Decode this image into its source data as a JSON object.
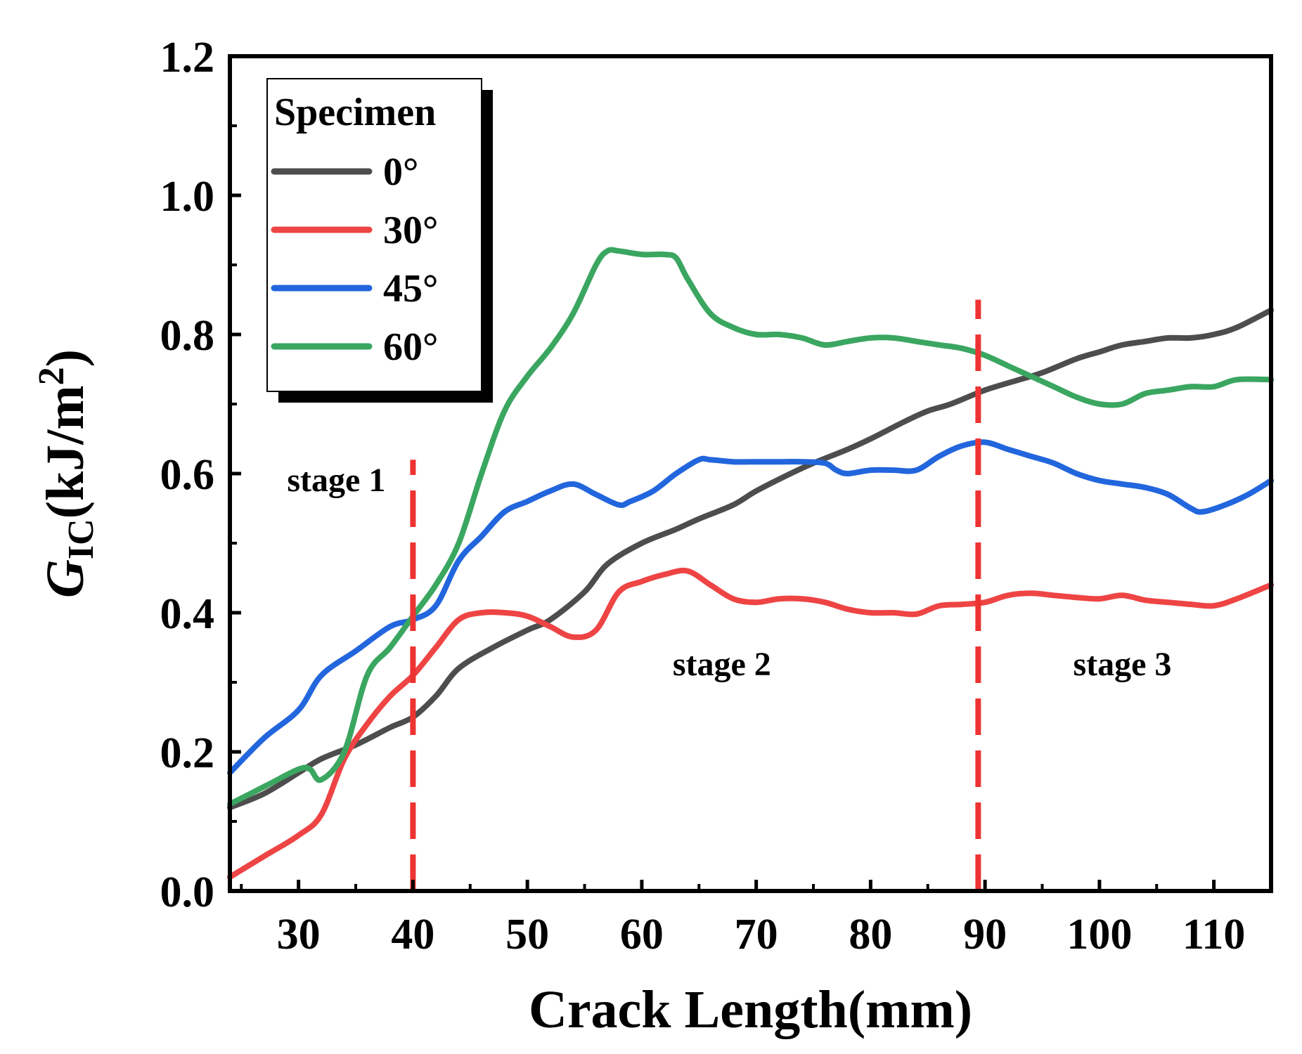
{
  "chart_data": {
    "type": "line",
    "title": "",
    "xlabel": "Crack Length(mm)",
    "ylabel": {
      "symbol": "G",
      "subscript": "IC",
      "unit_open": "(kJ/m",
      "superscript": "2",
      "unit_close": ")"
    },
    "xlim": [
      24,
      115
    ],
    "ylim": [
      0.0,
      1.2
    ],
    "xticks": [
      30,
      40,
      50,
      60,
      70,
      80,
      90,
      100,
      110
    ],
    "yticks": [
      0.0,
      0.2,
      0.4,
      0.6,
      0.8,
      1.0,
      1.2
    ],
    "ytick_labels": [
      "0.0",
      "0.2",
      "0.4",
      "0.6",
      "0.8",
      "1.0",
      "1.2"
    ],
    "legend": {
      "title": "Specimen",
      "position": "top-left"
    },
    "series": [
      {
        "name": "0°",
        "color": "#4d4d4d",
        "x": [
          24,
          27,
          30,
          32,
          35,
          38,
          40,
          42,
          44,
          47,
          50,
          52,
          55,
          57,
          60,
          63,
          65,
          68,
          70,
          73,
          75,
          78,
          80,
          83,
          85,
          87,
          90,
          93,
          95,
          98,
          100,
          102,
          104,
          106,
          108,
          110,
          112,
          115
        ],
        "y": [
          0.12,
          0.14,
          0.17,
          0.19,
          0.21,
          0.235,
          0.25,
          0.28,
          0.32,
          0.35,
          0.375,
          0.39,
          0.43,
          0.47,
          0.5,
          0.52,
          0.535,
          0.555,
          0.575,
          0.6,
          0.615,
          0.635,
          0.65,
          0.675,
          0.69,
          0.7,
          0.72,
          0.735,
          0.745,
          0.765,
          0.775,
          0.785,
          0.79,
          0.795,
          0.795,
          0.8,
          0.81,
          0.835
        ]
      },
      {
        "name": "30°",
        "color": "#ee4444",
        "x": [
          24,
          27,
          30,
          32,
          34,
          36,
          38,
          40,
          42,
          44,
          46,
          48,
          50,
          52,
          54,
          56,
          58,
          60,
          62,
          64,
          66,
          68,
          70,
          72,
          74,
          76,
          78,
          80,
          82,
          84,
          86,
          88,
          90,
          92,
          94,
          96,
          98,
          100,
          102,
          104,
          106,
          108,
          110,
          112,
          115
        ],
        "y": [
          0.02,
          0.05,
          0.08,
          0.11,
          0.19,
          0.24,
          0.28,
          0.31,
          0.35,
          0.39,
          0.4,
          0.4,
          0.395,
          0.38,
          0.365,
          0.375,
          0.43,
          0.445,
          0.455,
          0.46,
          0.44,
          0.42,
          0.415,
          0.42,
          0.42,
          0.415,
          0.405,
          0.4,
          0.4,
          0.398,
          0.41,
          0.412,
          0.415,
          0.425,
          0.428,
          0.425,
          0.422,
          0.42,
          0.425,
          0.418,
          0.415,
          0.412,
          0.41,
          0.42,
          0.44
        ]
      },
      {
        "name": "45°",
        "color": "#2266dd",
        "x": [
          24,
          27,
          30,
          32,
          35,
          38,
          40,
          42,
          44,
          46,
          48,
          50,
          52,
          54,
          56,
          58,
          59,
          61,
          63,
          65,
          66,
          68,
          70,
          72,
          74,
          76,
          77,
          78,
          80,
          82,
          84,
          86,
          88,
          90,
          92,
          94,
          96,
          98,
          100,
          102,
          104,
          106,
          108,
          109,
          111,
          113,
          115
        ],
        "y": [
          0.17,
          0.22,
          0.26,
          0.31,
          0.345,
          0.38,
          0.39,
          0.41,
          0.475,
          0.51,
          0.545,
          0.56,
          0.575,
          0.585,
          0.57,
          0.555,
          0.56,
          0.575,
          0.6,
          0.62,
          0.62,
          0.617,
          0.617,
          0.617,
          0.617,
          0.615,
          0.605,
          0.6,
          0.605,
          0.605,
          0.605,
          0.625,
          0.64,
          0.645,
          0.635,
          0.625,
          0.615,
          0.6,
          0.59,
          0.585,
          0.58,
          0.57,
          0.55,
          0.545,
          0.555,
          0.57,
          0.59
        ]
      },
      {
        "name": "60°",
        "color": "#3aa660",
        "x": [
          24,
          27,
          30,
          31,
          32,
          34,
          36,
          38,
          40,
          42,
          44,
          46,
          48,
          50,
          52,
          54,
          56,
          57,
          58,
          60,
          62,
          63,
          64,
          66,
          68,
          70,
          72,
          74,
          76,
          78,
          80,
          82,
          84,
          86,
          88,
          90,
          92,
          94,
          96,
          98,
          100,
          102,
          104,
          106,
          108,
          110,
          112,
          115
        ],
        "y": [
          0.125,
          0.15,
          0.175,
          0.175,
          0.16,
          0.2,
          0.31,
          0.35,
          0.395,
          0.44,
          0.5,
          0.6,
          0.69,
          0.74,
          0.78,
          0.83,
          0.9,
          0.92,
          0.92,
          0.915,
          0.915,
          0.91,
          0.88,
          0.83,
          0.81,
          0.8,
          0.8,
          0.795,
          0.785,
          0.79,
          0.795,
          0.795,
          0.79,
          0.785,
          0.78,
          0.77,
          0.755,
          0.74,
          0.725,
          0.71,
          0.7,
          0.7,
          0.715,
          0.72,
          0.725,
          0.725,
          0.735,
          0.735
        ]
      }
    ],
    "vlines": [
      {
        "x": 40,
        "y_range": [
          0.0,
          0.62
        ],
        "color": "#ee3333",
        "style": "dashed"
      },
      {
        "x": 89.4,
        "y_range": [
          0.0,
          0.85
        ],
        "color": "#ee3333",
        "style": "dashed"
      }
    ],
    "annotations": [
      {
        "text": "stage 1",
        "x": 33.3,
        "y": 0.575
      },
      {
        "text": "stage 2",
        "x": 67,
        "y": 0.31
      },
      {
        "text": "stage 3",
        "x": 102,
        "y": 0.31
      }
    ]
  }
}
